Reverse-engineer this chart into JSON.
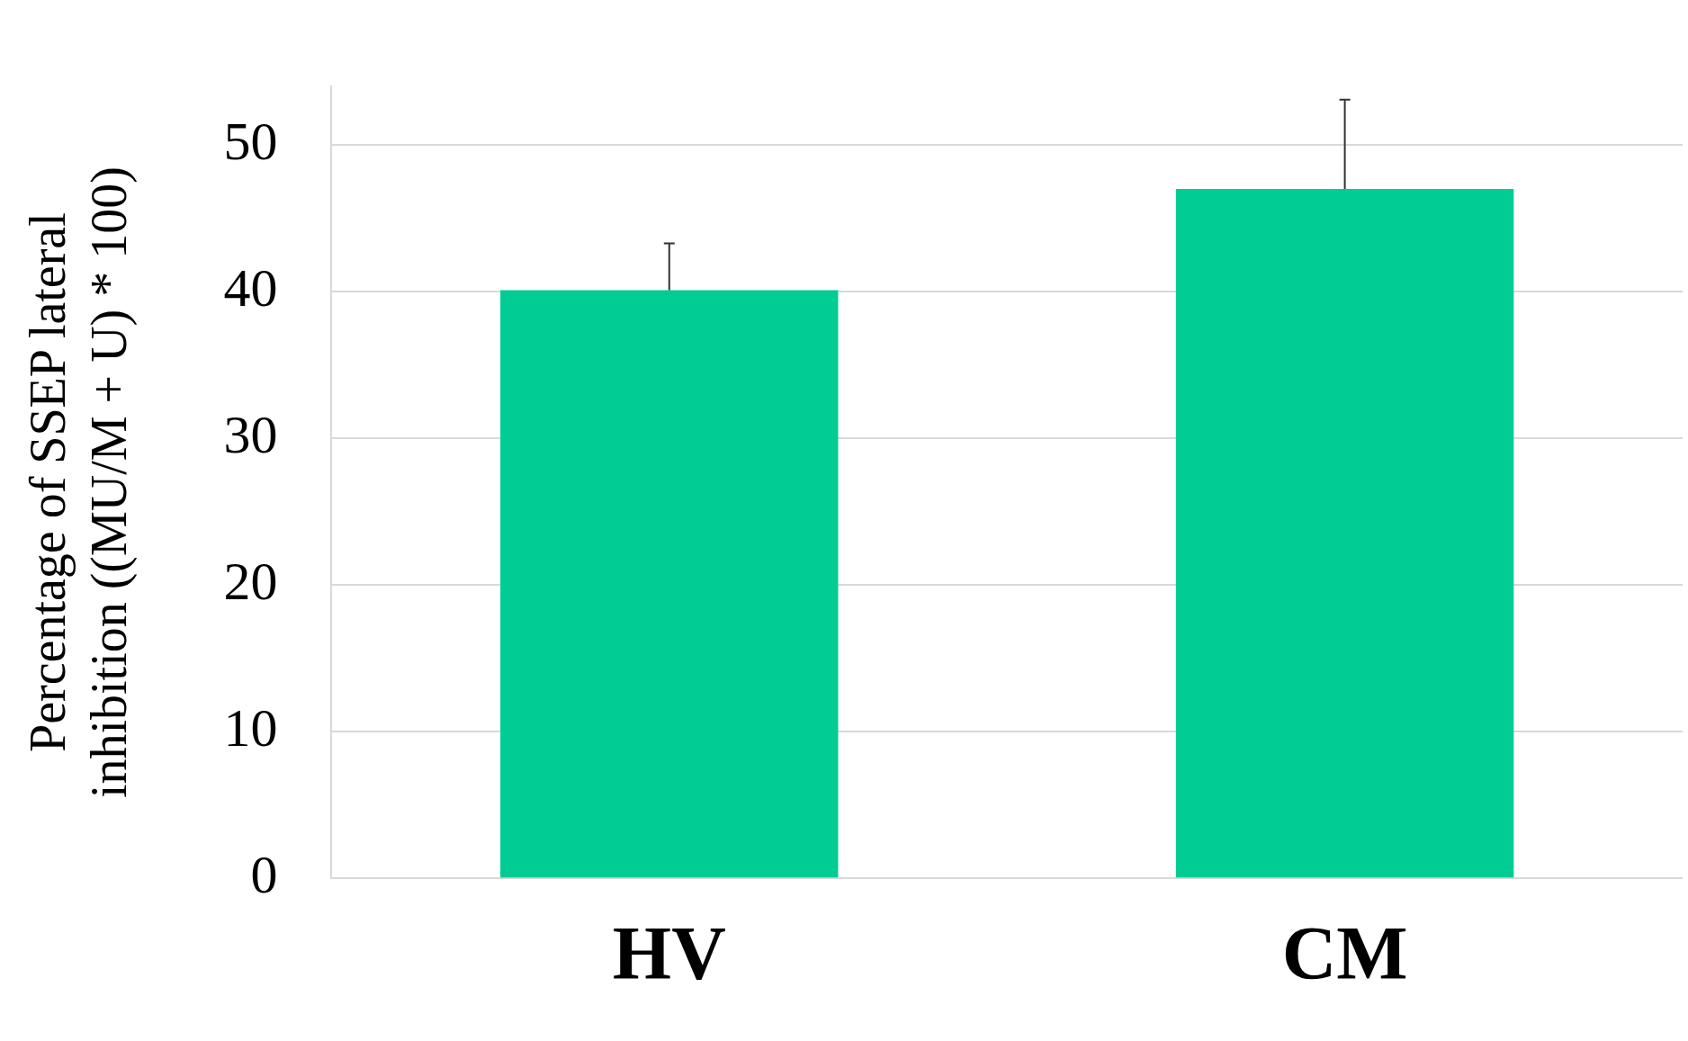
{
  "chart_data": {
    "type": "bar",
    "ylabel": "Percentage of SSEP lateral\ninhibition ((MU/M + U) * 100)",
    "categories": [
      "HV",
      "CM"
    ],
    "values": [
      40.1,
      47.0
    ],
    "color": "#00cc93",
    "errors": [
      [
        40.1,
        43.3
      ],
      [
        47.0,
        53.1
      ]
    ],
    "ylim": [
      0,
      54
    ],
    "yticks": [
      0,
      10,
      20,
      30,
      40,
      50
    ],
    "grid": "y"
  }
}
